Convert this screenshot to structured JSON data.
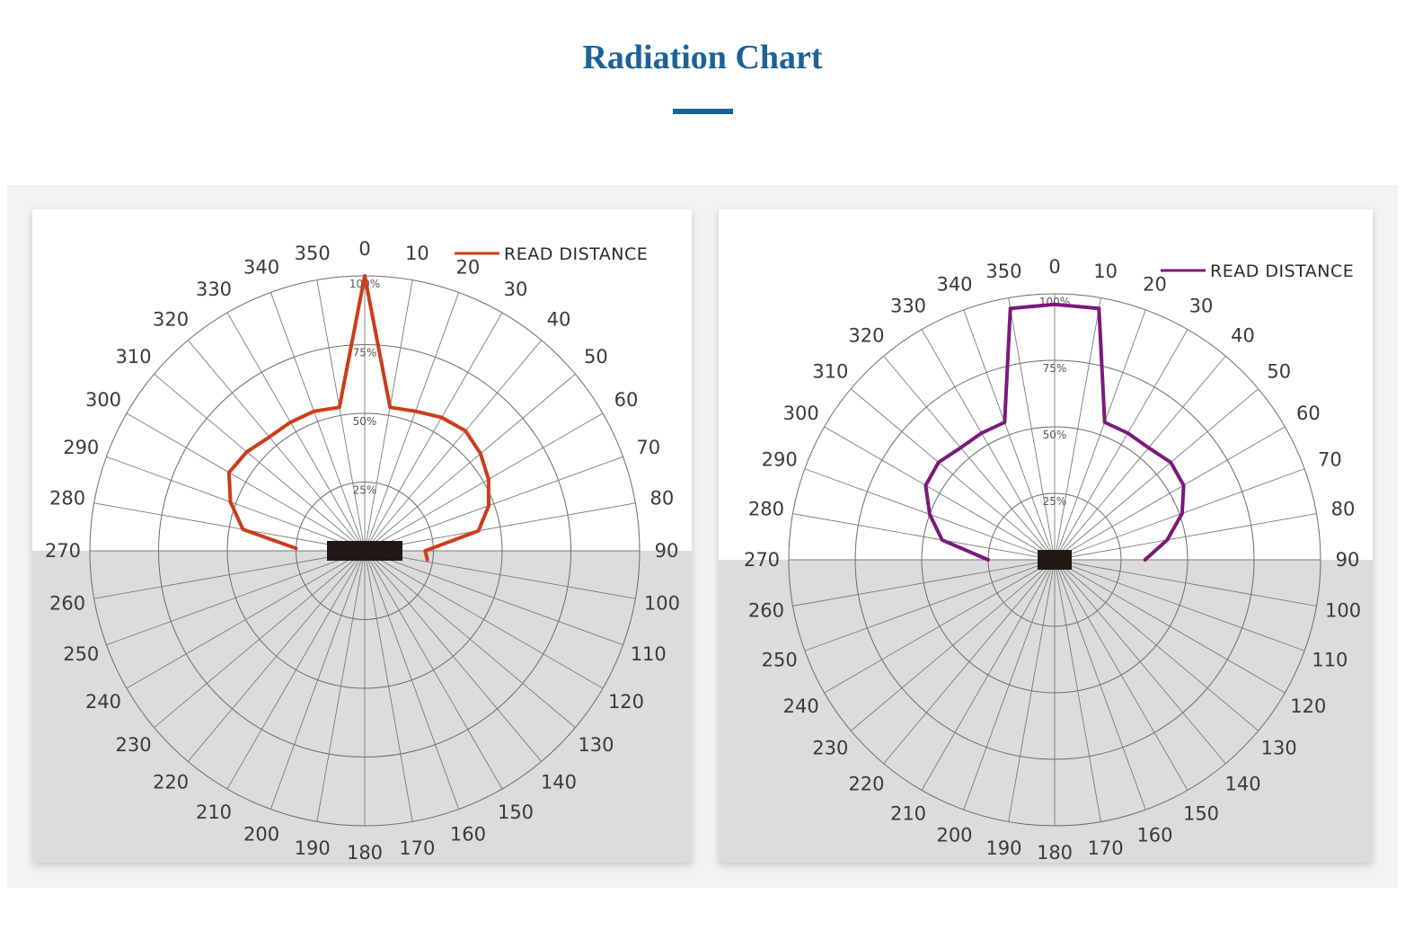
{
  "page": {
    "title": "Radiation Chart"
  },
  "chart_data": [
    {
      "type": "polar",
      "title": "",
      "angle_ticks": [
        0,
        10,
        20,
        30,
        40,
        50,
        60,
        70,
        80,
        90,
        100,
        110,
        120,
        130,
        140,
        150,
        160,
        170,
        180,
        190,
        200,
        210,
        220,
        230,
        240,
        250,
        260,
        270,
        280,
        290,
        300,
        310,
        320,
        330,
        340,
        350
      ],
      "radial_ticks": [
        "25%",
        "50%",
        "75%",
        "100%"
      ],
      "radial_range": [
        0,
        100
      ],
      "shaded_region": "90-270",
      "legend_position": "top-right",
      "series": [
        {
          "name": "READ DISTANCE",
          "color": "#cc3c1a",
          "angles": [
            272,
            280,
            290,
            300,
            310,
            320,
            330,
            340,
            350,
            0,
            10,
            20,
            30,
            40,
            50,
            60,
            70,
            80,
            90,
            98
          ],
          "values": [
            25,
            45,
            52,
            57,
            56,
            54,
            54,
            54,
            53,
            100,
            53,
            54,
            56,
            57,
            55,
            52,
            48,
            42,
            22,
            23
          ]
        }
      ]
    },
    {
      "type": "polar",
      "title": "",
      "angle_ticks": [
        0,
        10,
        20,
        30,
        40,
        50,
        60,
        70,
        80,
        90,
        100,
        110,
        120,
        130,
        140,
        150,
        160,
        170,
        180,
        190,
        200,
        210,
        220,
        230,
        240,
        250,
        260,
        270,
        280,
        290,
        300,
        310,
        320,
        330,
        340,
        350
      ],
      "radial_ticks": [
        "25%",
        "50%",
        "75%",
        "100%"
      ],
      "radial_range": [
        0,
        100
      ],
      "shaded_region": "90-270",
      "legend_position": "top-right",
      "series": [
        {
          "name": "READ DISTANCE",
          "color": "#7a1a7a",
          "angles": [
            270,
            280,
            290,
            300,
            310,
            320,
            330,
            340,
            350,
            0,
            10,
            20,
            30,
            40,
            50,
            60,
            70,
            80,
            90
          ],
          "values": [
            25,
            43,
            50,
            56,
            57,
            55,
            55,
            55,
            96,
            96,
            96,
            55,
            55,
            55,
            57,
            56,
            51,
            43,
            34
          ]
        }
      ]
    }
  ]
}
